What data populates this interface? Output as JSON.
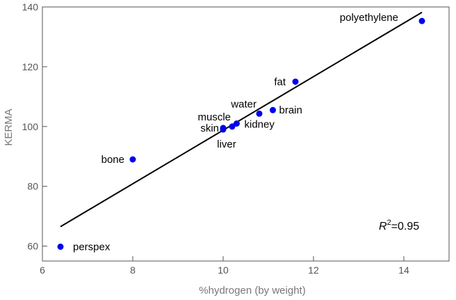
{
  "chart_data": {
    "type": "scatter",
    "xlabel": "%hydrogen (by weight)",
    "ylabel": "KERMA",
    "xlim": [
      6,
      15
    ],
    "ylim": [
      55,
      140
    ],
    "xticks": [
      "6",
      "8",
      "10",
      "12",
      "14"
    ],
    "yticks": [
      "60",
      "80",
      "100",
      "120",
      "140"
    ],
    "grid": false,
    "point_color": "#0000ee",
    "line_color": "#000000",
    "points": [
      {
        "label": "perspex",
        "x": 6.4,
        "y": 59.8
      },
      {
        "label": "bone",
        "x": 8.0,
        "y": 89.0
      },
      {
        "label": "skin",
        "x": 10.0,
        "y": 99.5
      },
      {
        "label": "liver",
        "x": 10.0,
        "y": 99.0
      },
      {
        "label": "muscle",
        "x": 10.2,
        "y": 100.0
      },
      {
        "label": "kidney",
        "x": 10.3,
        "y": 101.0
      },
      {
        "label": "water",
        "x": 10.8,
        "y": 104.3
      },
      {
        "label": "brain",
        "x": 11.1,
        "y": 105.5
      },
      {
        "label": "fat",
        "x": 11.6,
        "y": 115.0
      },
      {
        "label": "polyethylene",
        "x": 14.4,
        "y": 135.3
      }
    ],
    "fit_line": {
      "x": [
        6.4,
        14.4
      ],
      "y": [
        66.5,
        138.2
      ]
    },
    "annotation": {
      "prefix": "R",
      "superscript": "2",
      "suffix": "=0.95"
    }
  }
}
